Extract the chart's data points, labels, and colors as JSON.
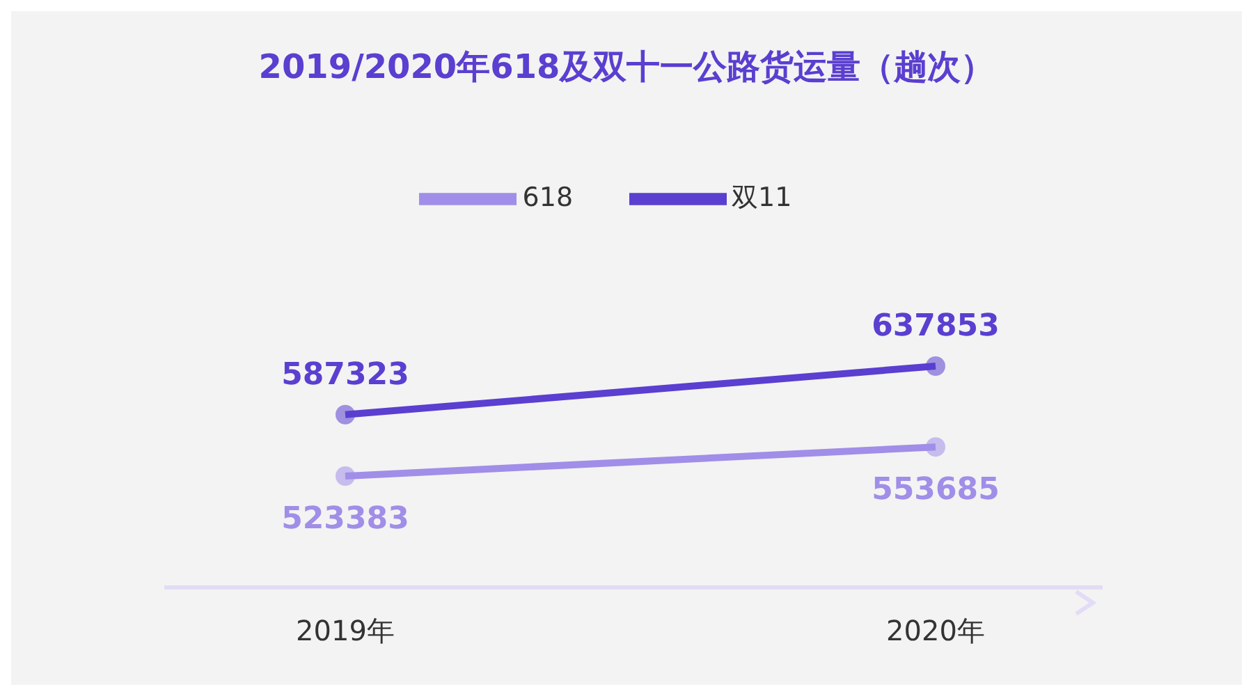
{
  "chart_data": {
    "type": "line",
    "title": "2019/2020年618及双十一公路货运量（趟次）",
    "categories": [
      "2019年",
      "2020年"
    ],
    "series": [
      {
        "name": "618",
        "color": "#a08ee8",
        "values": [
          523383,
          553685
        ]
      },
      {
        "name": "双11",
        "color": "#5a3fd0",
        "values": [
          587323,
          637853
        ]
      }
    ],
    "data_labels": true,
    "legend": "top",
    "marker": "circle",
    "grid": false
  }
}
